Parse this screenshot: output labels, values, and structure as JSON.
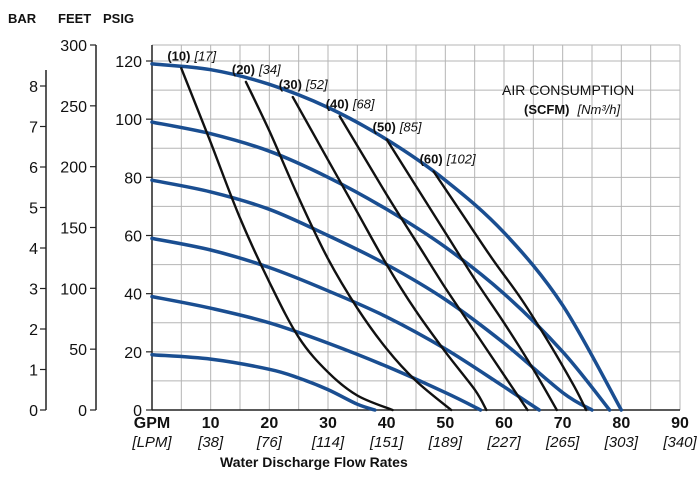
{
  "chart_data": {
    "type": "line",
    "header": {
      "bar": "BAR",
      "feet": "FEET",
      "psig": "PSIG"
    },
    "xlabel": "Water Discharge Flow Rates",
    "x_unit_gpm": "GPM",
    "x_unit_lpm": "[LPM]",
    "x_ticks_gpm": [
      "10",
      "20",
      "30",
      "40",
      "50",
      "60",
      "70",
      "80",
      "90"
    ],
    "x_ticks_lpm": [
      "[38]",
      "[76]",
      "[114]",
      "[151]",
      "[189]",
      "[227]",
      "[265]",
      "[303]",
      "[340]"
    ],
    "xlim": [
      0,
      90
    ],
    "ylim_psig": [
      0,
      120
    ],
    "yticks_psig": [
      "0",
      "20",
      "40",
      "60",
      "80",
      "100",
      "120"
    ],
    "yticks_feet": [
      "0",
      "50",
      "100",
      "150",
      "200",
      "250",
      "300"
    ],
    "yticks_bar": [
      "0",
      "1",
      "2",
      "3",
      "4",
      "5",
      "6",
      "7",
      "8"
    ],
    "grid": true,
    "legend": {
      "title_line1": "AIR CONSUMPTION",
      "title_bold": "(SCFM)",
      "title_italic": "[Nm³/h]",
      "placement": "top-right"
    },
    "pressure_curves": [
      {
        "inlet_psig": 120,
        "points": [
          [
            0,
            119
          ],
          [
            10,
            117
          ],
          [
            20,
            112
          ],
          [
            30,
            104
          ],
          [
            40,
            93
          ],
          [
            50,
            79
          ],
          [
            60,
            61
          ],
          [
            70,
            36
          ],
          [
            80,
            0
          ]
        ]
      },
      {
        "inlet_psig": 100,
        "points": [
          [
            0,
            99
          ],
          [
            10,
            95
          ],
          [
            20,
            89
          ],
          [
            30,
            80
          ],
          [
            40,
            69
          ],
          [
            50,
            56
          ],
          [
            60,
            40
          ],
          [
            70,
            20
          ],
          [
            78,
            0
          ]
        ]
      },
      {
        "inlet_psig": 80,
        "points": [
          [
            0,
            79
          ],
          [
            10,
            75
          ],
          [
            20,
            69
          ],
          [
            30,
            60
          ],
          [
            40,
            50
          ],
          [
            50,
            38
          ],
          [
            60,
            23
          ],
          [
            70,
            6
          ],
          [
            75,
            0
          ]
        ]
      },
      {
        "inlet_psig": 60,
        "points": [
          [
            0,
            59
          ],
          [
            10,
            55
          ],
          [
            20,
            49
          ],
          [
            30,
            41
          ],
          [
            40,
            32
          ],
          [
            50,
            21
          ],
          [
            60,
            8
          ],
          [
            66,
            0
          ]
        ]
      },
      {
        "inlet_psig": 40,
        "points": [
          [
            0,
            39
          ],
          [
            10,
            35
          ],
          [
            20,
            30
          ],
          [
            30,
            23
          ],
          [
            40,
            15
          ],
          [
            50,
            6
          ],
          [
            56,
            0
          ]
        ]
      },
      {
        "inlet_psig": 20,
        "points": [
          [
            0,
            19
          ],
          [
            10,
            17.5
          ],
          [
            20,
            14
          ],
          [
            25,
            11
          ],
          [
            30,
            7
          ],
          [
            35,
            2
          ],
          [
            38,
            0
          ]
        ]
      }
    ],
    "air_curves": [
      {
        "scfm": "(10)",
        "nm3h": "[17]",
        "points": [
          [
            5,
            117.5
          ],
          [
            10,
            92
          ],
          [
            15,
            66
          ],
          [
            20,
            44
          ],
          [
            25,
            25
          ],
          [
            30,
            13
          ],
          [
            35,
            5
          ],
          [
            41,
            0
          ]
        ]
      },
      {
        "scfm": "(20)",
        "nm3h": "[34]",
        "points": [
          [
            16,
            112.8
          ],
          [
            20,
            96
          ],
          [
            25,
            73
          ],
          [
            30,
            52
          ],
          [
            35,
            35
          ],
          [
            40,
            21
          ],
          [
            45,
            10
          ],
          [
            51,
            0
          ]
        ]
      },
      {
        "scfm": "(30)",
        "nm3h": "[52]",
        "points": [
          [
            24,
            107.6
          ],
          [
            30,
            86
          ],
          [
            35,
            68
          ],
          [
            40,
            50
          ],
          [
            45,
            34
          ],
          [
            50,
            20
          ],
          [
            55,
            7
          ],
          [
            57,
            0
          ]
        ]
      },
      {
        "scfm": "(40)",
        "nm3h": "[68]",
        "points": [
          [
            32,
            101
          ],
          [
            40,
            74
          ],
          [
            45,
            58
          ],
          [
            50,
            42
          ],
          [
            55,
            27
          ],
          [
            60,
            12
          ],
          [
            64,
            0
          ]
        ]
      },
      {
        "scfm": "(50)",
        "nm3h": "[85]",
        "points": [
          [
            40,
            93
          ],
          [
            45,
            77
          ],
          [
            50,
            61
          ],
          [
            55,
            45
          ],
          [
            60,
            30
          ],
          [
            65,
            14
          ],
          [
            69,
            0
          ]
        ]
      },
      {
        "scfm": "(60)",
        "nm3h": "[102]",
        "points": [
          [
            48,
            82
          ],
          [
            53,
            67
          ],
          [
            58,
            52
          ],
          [
            63,
            38
          ],
          [
            68,
            22
          ],
          [
            72,
            8
          ],
          [
            74,
            0
          ]
        ]
      }
    ],
    "colors": {
      "pressure": "#1a4e91",
      "air": "#111111",
      "grid": "#b5b5b5",
      "axis": "#222222"
    }
  }
}
